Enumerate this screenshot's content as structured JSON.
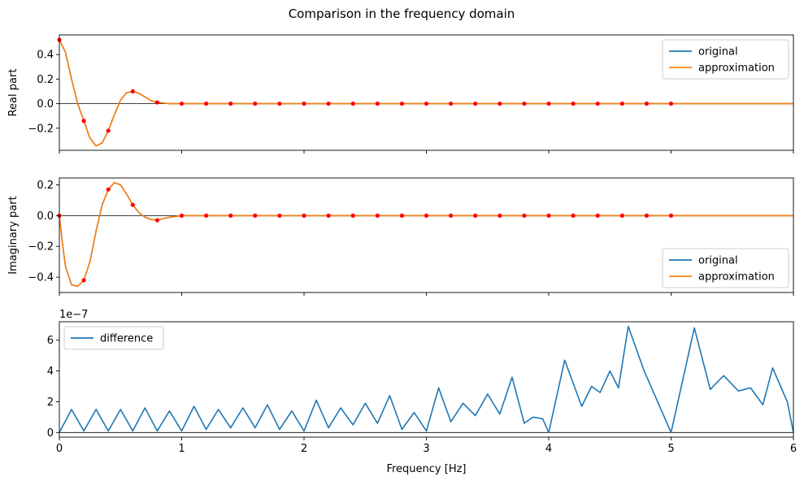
{
  "chart_data": [
    {
      "type": "line",
      "title": "Comparison in the frequency domain",
      "xlabel": "",
      "ylabel": "Real part",
      "xlim": [
        0,
        6
      ],
      "ylim": [
        -0.38,
        0.56
      ],
      "xticks": [
        0,
        1,
        2,
        3,
        4,
        5,
        6
      ],
      "yticks": [
        -0.2,
        0.0,
        0.2,
        0.4
      ],
      "ytick_labels": [
        "−0.2",
        "0.0",
        "0.2",
        "0.4"
      ],
      "legend": {
        "placement": "top-right",
        "entries": [
          "original",
          "approximation"
        ]
      },
      "series": [
        {
          "name": "original",
          "color": "#1f77b4",
          "style": "line"
        },
        {
          "name": "approximation",
          "color": "#ff7f0e",
          "style": "line"
        }
      ],
      "curve": {
        "x": [
          0,
          0.05,
          0.1,
          0.15,
          0.2,
          0.25,
          0.3,
          0.35,
          0.4,
          0.45,
          0.5,
          0.55,
          0.6,
          0.65,
          0.7,
          0.75,
          0.8,
          0.9,
          1.0,
          6.0
        ],
        "y": [
          0.52,
          0.42,
          0.2,
          0.0,
          -0.14,
          -0.28,
          -0.345,
          -0.32,
          -0.22,
          -0.09,
          0.03,
          0.09,
          0.1,
          0.085,
          0.055,
          0.025,
          0.01,
          0.0,
          0.0,
          0.0
        ]
      },
      "samples": {
        "color": "#ff0000",
        "x": [
          0,
          0.2,
          0.4,
          0.6,
          0.8,
          1.0,
          1.2,
          1.4,
          1.6,
          1.8,
          2.0,
          2.2,
          2.4,
          2.6,
          2.8,
          3.0,
          3.2,
          3.4,
          3.6,
          3.8,
          4.0,
          4.2,
          4.4,
          4.6,
          4.8,
          5.0
        ],
        "y": [
          0.52,
          -0.14,
          -0.22,
          0.1,
          0.01,
          0,
          0,
          0,
          0,
          0,
          0,
          0,
          0,
          0,
          0,
          0,
          0,
          0,
          0,
          0,
          0,
          0,
          0,
          0,
          0,
          0
        ]
      },
      "hline": 0
    },
    {
      "type": "line",
      "xlabel": "",
      "ylabel": "Imaginary part",
      "xlim": [
        0,
        6
      ],
      "ylim": [
        -0.5,
        0.245
      ],
      "xticks": [
        0,
        1,
        2,
        3,
        4,
        5,
        6
      ],
      "yticks": [
        -0.4,
        -0.2,
        0.0,
        0.2
      ],
      "ytick_labels": [
        "−0.4",
        "−0.2",
        "0.0",
        "0.2"
      ],
      "legend": {
        "placement": "bottom-right",
        "entries": [
          "original",
          "approximation"
        ]
      },
      "series": [
        {
          "name": "original",
          "color": "#1f77b4",
          "style": "line"
        },
        {
          "name": "approximation",
          "color": "#ff7f0e",
          "style": "line"
        }
      ],
      "curve": {
        "x": [
          0,
          0.025,
          0.05,
          0.1,
          0.15,
          0.2,
          0.25,
          0.3,
          0.35,
          0.4,
          0.45,
          0.5,
          0.55,
          0.6,
          0.65,
          0.7,
          0.75,
          0.8,
          0.9,
          1.0,
          6.0
        ],
        "y": [
          0,
          -0.18,
          -0.33,
          -0.45,
          -0.46,
          -0.42,
          -0.3,
          -0.1,
          0.07,
          0.17,
          0.215,
          0.2,
          0.14,
          0.07,
          0.02,
          -0.01,
          -0.025,
          -0.03,
          -0.01,
          0.0,
          0.0
        ]
      },
      "samples": {
        "color": "#ff0000",
        "x": [
          0,
          0.2,
          0.4,
          0.6,
          0.8,
          1.0,
          1.2,
          1.4,
          1.6,
          1.8,
          2.0,
          2.2,
          2.4,
          2.6,
          2.8,
          3.0,
          3.2,
          3.4,
          3.6,
          3.8,
          4.0,
          4.2,
          4.4,
          4.6,
          4.8,
          5.0
        ],
        "y": [
          0,
          -0.42,
          0.17,
          0.07,
          -0.03,
          0,
          0,
          0,
          0,
          0,
          0,
          0,
          0,
          0,
          0,
          0,
          0,
          0,
          0,
          0,
          0,
          0,
          0,
          0,
          0,
          0
        ]
      },
      "hline": 0
    },
    {
      "type": "line",
      "xlabel": "Frequency [Hz]",
      "ylabel": "",
      "xlim": [
        0,
        6
      ],
      "ylim": [
        -0.3,
        7.2
      ],
      "offset_text": "1e−7",
      "xticks": [
        0,
        1,
        2,
        3,
        4,
        5,
        6
      ],
      "yticks": [
        0,
        2,
        4,
        6
      ],
      "ytick_labels": [
        "0",
        "2",
        "4",
        "6"
      ],
      "legend": {
        "placement": "top-left",
        "entries": [
          "difference"
        ]
      },
      "series": [
        {
          "name": "difference",
          "color": "#1f77b4",
          "style": "line",
          "x": [
            0,
            0.1,
            0.2,
            0.3,
            0.4,
            0.5,
            0.6,
            0.7,
            0.8,
            0.9,
            1.0,
            1.1,
            1.2,
            1.3,
            1.4,
            1.5,
            1.6,
            1.7,
            1.8,
            1.9,
            2.0,
            2.1,
            2.2,
            2.3,
            2.4,
            2.5,
            2.6,
            2.7,
            2.8,
            2.9,
            3.0,
            3.1,
            3.2,
            3.3,
            3.4,
            3.5,
            3.6,
            3.7,
            3.8,
            3.87,
            3.95,
            4.0,
            4.13,
            4.27,
            4.35,
            4.42,
            4.5,
            4.57,
            4.65,
            4.78,
            5.0,
            5.19,
            5.32,
            5.43,
            5.55,
            5.65,
            5.75,
            5.83,
            5.95,
            6.0
          ],
          "y": [
            0,
            1.5,
            0.1,
            1.5,
            0.1,
            1.5,
            0.1,
            1.6,
            0.1,
            1.4,
            0.1,
            1.7,
            0.2,
            1.5,
            0.3,
            1.6,
            0.3,
            1.8,
            0.2,
            1.4,
            0.1,
            2.1,
            0.3,
            1.6,
            0.5,
            1.9,
            0.6,
            2.4,
            0.2,
            1.3,
            0.1,
            2.9,
            0.7,
            1.9,
            1.1,
            2.5,
            1.2,
            3.6,
            0.6,
            1.0,
            0.9,
            0,
            4.7,
            1.7,
            3.0,
            2.6,
            4.0,
            2.9,
            6.9,
            4.0,
            0,
            6.8,
            2.8,
            3.7,
            2.7,
            2.9,
            1.8,
            4.2,
            2.0,
            0
          ]
        }
      ],
      "hline": 0
    }
  ]
}
